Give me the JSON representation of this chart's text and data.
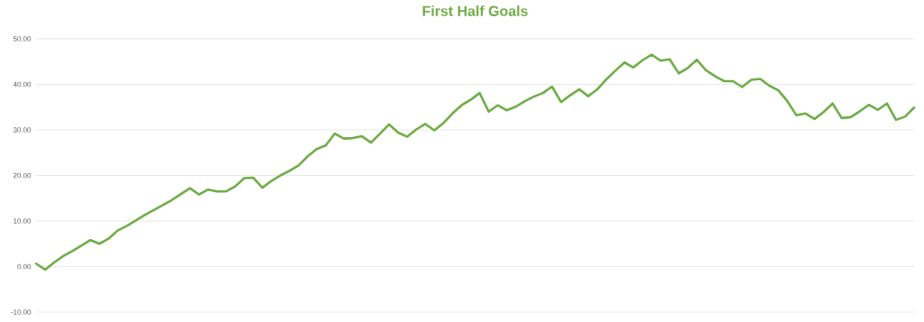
{
  "chart_data": {
    "type": "line",
    "title": "First Half Goals",
    "categories": [
      null,
      null,
      null,
      null,
      null,
      null,
      null,
      null,
      null,
      null,
      null,
      null,
      null,
      null,
      null,
      null,
      null,
      null,
      null,
      null,
      null,
      null,
      null,
      null,
      null,
      null,
      null,
      null,
      null,
      null,
      null,
      null,
      null,
      null,
      null,
      null,
      null,
      null,
      null,
      null,
      null,
      null,
      null,
      null,
      null,
      null,
      null,
      null,
      null,
      null,
      null,
      null,
      null,
      null,
      null,
      null,
      null,
      null,
      null,
      null,
      null,
      null,
      null,
      null,
      null,
      null,
      null,
      null,
      null,
      null,
      null,
      null,
      null,
      null,
      null,
      null,
      null,
      null,
      null,
      null,
      null,
      null,
      null,
      null,
      null,
      null,
      null,
      null,
      null,
      null,
      null,
      null,
      null,
      null,
      null,
      null,
      null,
      null
    ],
    "series": [
      {
        "color": "#70ad47",
        "values": [
          0.65,
          -0.7,
          0.9,
          2.3,
          3.4,
          4.6,
          5.8,
          5.0,
          6.1,
          7.9,
          8.9,
          10.1,
          11.3,
          12.4,
          13.5,
          14.6,
          15.9,
          17.2,
          15.8,
          16.9,
          16.5,
          16.5,
          17.6,
          19.4,
          19.5,
          17.3,
          18.8,
          20.0,
          21.0,
          22.2,
          24.2,
          25.8,
          26.6,
          29.2,
          28.1,
          28.2,
          28.6,
          27.2,
          29.2,
          31.2,
          29.4,
          28.5,
          30.1,
          31.3,
          29.9,
          31.5,
          33.6,
          35.4,
          36.6,
          38.1,
          34.0,
          35.4,
          34.3,
          35.1,
          36.3,
          37.3,
          38.1,
          39.5,
          36.1,
          37.6,
          38.9,
          37.4,
          38.9,
          41.1,
          43.0,
          44.8,
          43.7,
          45.3,
          46.5,
          45.2,
          45.5,
          42.4,
          43.6,
          45.4,
          43.1,
          41.8,
          40.7,
          40.7,
          39.4,
          41.0,
          41.2,
          39.7,
          38.7,
          36.3,
          33.2,
          33.6,
          32.4,
          33.9,
          35.8,
          32.6,
          32.8,
          34.1,
          35.5,
          34.4,
          35.8,
          32.2,
          32.9,
          34.9
        ]
      }
    ],
    "ylim": [
      -10,
      50
    ],
    "yticks": [
      {
        "value": -10,
        "label": "-10.00"
      },
      {
        "value": 0,
        "label": "0.00"
      },
      {
        "value": 10,
        "label": "10.00"
      },
      {
        "value": 20,
        "label": "20.00"
      },
      {
        "value": 30,
        "label": "30.00"
      },
      {
        "value": 40,
        "label": "40.00"
      },
      {
        "value": 50,
        "label": "50.00"
      }
    ],
    "grid": "y"
  }
}
